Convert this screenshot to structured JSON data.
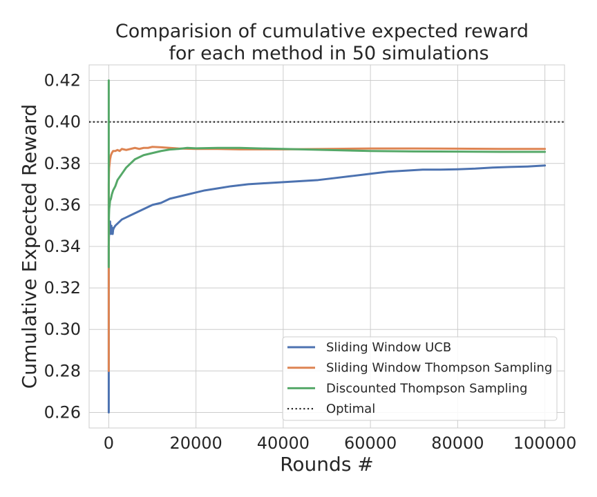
{
  "chart_data": {
    "type": "line",
    "title": "Comparision of cumulative expected reward\nfor each method in 50 simulations",
    "xlabel": "Rounds #",
    "ylabel": "Cumulative Expected Reward",
    "xlim": [
      -4500,
      104500
    ],
    "ylim": [
      0.2525,
      0.4275
    ],
    "xticks": [
      0,
      20000,
      40000,
      60000,
      80000,
      100000
    ],
    "xtick_labels": [
      "0",
      "20000",
      "40000",
      "60000",
      "80000",
      "100000"
    ],
    "yticks": [
      0.26,
      0.28,
      0.3,
      0.32,
      0.34,
      0.36,
      0.38,
      0.4,
      0.42
    ],
    "ytick_labels": [
      "0.26",
      "0.28",
      "0.30",
      "0.32",
      "0.34",
      "0.36",
      "0.38",
      "0.40",
      "0.42"
    ],
    "grid": true,
    "legend": "bottom-right",
    "series": [
      {
        "name": "Sliding Window UCB",
        "color": "#4c72b0",
        "style": "solid",
        "x": [
          0,
          0,
          0,
          50,
          100,
          200,
          300,
          400,
          500,
          600,
          700,
          800,
          900,
          1000,
          1200,
          1500,
          2000,
          2500,
          3000,
          4000,
          5000,
          6000,
          7000,
          8000,
          9000,
          10000,
          12000,
          14000,
          16000,
          18000,
          20000,
          22000,
          25000,
          28000,
          32000,
          36000,
          40000,
          44000,
          48000,
          52000,
          56000,
          60000,
          64000,
          68000,
          72000,
          76000,
          80000,
          84000,
          88000,
          92000,
          96000,
          100000
        ],
        "y": [
          0.26,
          0.28,
          0.34,
          0.345,
          0.35,
          0.348,
          0.352,
          0.347,
          0.346,
          0.35,
          0.347,
          0.349,
          0.346,
          0.348,
          0.349,
          0.35,
          0.351,
          0.352,
          0.353,
          0.354,
          0.355,
          0.356,
          0.357,
          0.358,
          0.359,
          0.36,
          0.361,
          0.363,
          0.364,
          0.365,
          0.366,
          0.367,
          0.368,
          0.369,
          0.37,
          0.3705,
          0.371,
          0.3715,
          0.372,
          0.373,
          0.374,
          0.375,
          0.376,
          0.3765,
          0.377,
          0.377,
          0.3772,
          0.3775,
          0.378,
          0.3783,
          0.3785,
          0.379
        ]
      },
      {
        "name": "Sliding Window Thompson Sampling",
        "color": "#dd8452",
        "style": "solid",
        "x": [
          0,
          0,
          0,
          50,
          100,
          200,
          300,
          500,
          700,
          1000,
          1500,
          2000,
          2500,
          3000,
          4000,
          5000,
          6000,
          7000,
          8000,
          9000,
          10000,
          12000,
          14000,
          16000,
          20000,
          25000,
          30000,
          40000,
          50000,
          60000,
          70000,
          80000,
          90000,
          100000
        ],
        "y": [
          0.28,
          0.33,
          0.37,
          0.375,
          0.378,
          0.38,
          0.382,
          0.384,
          0.385,
          0.386,
          0.386,
          0.3865,
          0.386,
          0.387,
          0.3865,
          0.387,
          0.3875,
          0.387,
          0.3875,
          0.3875,
          0.388,
          0.3878,
          0.3875,
          0.3872,
          0.387,
          0.387,
          0.3868,
          0.3868,
          0.387,
          0.3872,
          0.3872,
          0.3871,
          0.387,
          0.387
        ]
      },
      {
        "name": "Discounted Thompson Sampling",
        "color": "#55a868",
        "style": "solid",
        "x": [
          0,
          0,
          0,
          50,
          100,
          200,
          300,
          500,
          700,
          1000,
          1500,
          2000,
          3000,
          4000,
          5000,
          6000,
          7000,
          8000,
          9000,
          10000,
          12000,
          14000,
          16000,
          18000,
          20000,
          25000,
          30000,
          35000,
          40000,
          50000,
          60000,
          70000,
          80000,
          90000,
          100000
        ],
        "y": [
          0.42,
          0.33,
          0.35,
          0.355,
          0.358,
          0.36,
          0.362,
          0.363,
          0.365,
          0.367,
          0.369,
          0.372,
          0.375,
          0.378,
          0.38,
          0.382,
          0.383,
          0.384,
          0.3845,
          0.385,
          0.386,
          0.3867,
          0.387,
          0.3875,
          0.3873,
          0.3875,
          0.3875,
          0.3872,
          0.387,
          0.3865,
          0.386,
          0.3858,
          0.3857,
          0.3856,
          0.3856
        ]
      },
      {
        "name": "Optimal",
        "color": "#262626",
        "style": "dotted",
        "x": [
          -4500,
          104500
        ],
        "y": [
          0.4,
          0.4
        ]
      }
    ]
  }
}
